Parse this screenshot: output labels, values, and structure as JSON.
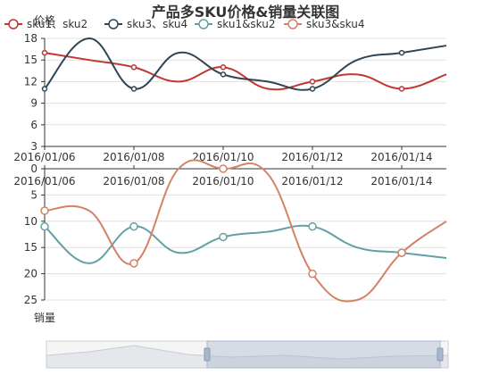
{
  "chart_data": {
    "title": "产品多SKU价格&销量关联图",
    "legend": [
      {
        "name": "sku1、sku2",
        "color": "#c23531"
      },
      {
        "name": "sku3、sku4",
        "color": "#2f4554"
      },
      {
        "name": "sku1&sku2",
        "color": "#61a0a8"
      },
      {
        "name": "sku3&sku4",
        "color": "#d48265"
      }
    ],
    "x_labels": [
      "2016/01/06",
      "2016/01/08",
      "2016/01/10",
      "2016/01/12",
      "2016/01/14"
    ],
    "top_chart": {
      "type": "line",
      "ylabel": "价格",
      "ylim": [
        3,
        18
      ],
      "y_ticks": [
        3,
        6,
        9,
        12,
        15,
        18
      ],
      "series": [
        {
          "name": "sku1、sku2",
          "color": "#c23531",
          "points": [
            [
              0,
              16
            ],
            [
              1,
              15
            ],
            [
              2,
              14
            ],
            [
              3,
              12
            ],
            [
              4,
              14
            ],
            [
              5,
              11
            ],
            [
              6,
              12
            ],
            [
              7,
              13
            ],
            [
              8,
              11
            ],
            [
              9,
              13
            ]
          ],
          "markers": [
            0,
            2,
            4,
            6,
            8
          ]
        },
        {
          "name": "sku3、sku4",
          "color": "#2f4554",
          "points": [
            [
              0,
              11
            ],
            [
              1,
              18
            ],
            [
              2,
              11
            ],
            [
              3,
              16
            ],
            [
              4,
              13
            ],
            [
              5,
              12
            ],
            [
              6,
              11
            ],
            [
              7,
              15
            ],
            [
              8,
              16
            ],
            [
              9,
              17
            ]
          ],
          "markers": [
            0,
            2,
            4,
            6,
            8
          ]
        }
      ]
    },
    "bottom_chart": {
      "type": "line",
      "ylabel": "销量",
      "ylim": [
        0,
        25
      ],
      "inverse": true,
      "y_ticks": [
        0,
        5,
        10,
        15,
        20,
        25
      ],
      "series": [
        {
          "name": "sku1&sku2",
          "color": "#61a0a8",
          "points": [
            [
              0,
              11
            ],
            [
              1,
              18
            ],
            [
              2,
              11
            ],
            [
              3,
              16
            ],
            [
              4,
              13
            ],
            [
              5,
              12
            ],
            [
              6,
              11
            ],
            [
              7,
              15
            ],
            [
              8,
              16
            ],
            [
              9,
              17
            ]
          ],
          "markers": [
            0,
            2,
            4,
            6,
            8
          ]
        },
        {
          "name": "sku3&sku4",
          "color": "#d48265",
          "points": [
            [
              0,
              8
            ],
            [
              1,
              8
            ],
            [
              2,
              18
            ],
            [
              3,
              0
            ],
            [
              4,
              0
            ],
            [
              5,
              1
            ],
            [
              6,
              20
            ],
            [
              7,
              25
            ],
            [
              8,
              16
            ],
            [
              9,
              10
            ]
          ],
          "markers": [
            0,
            2,
            4,
            6,
            8
          ]
        }
      ]
    },
    "datazoom": {
      "start": 0.4,
      "end": 0.98
    }
  }
}
